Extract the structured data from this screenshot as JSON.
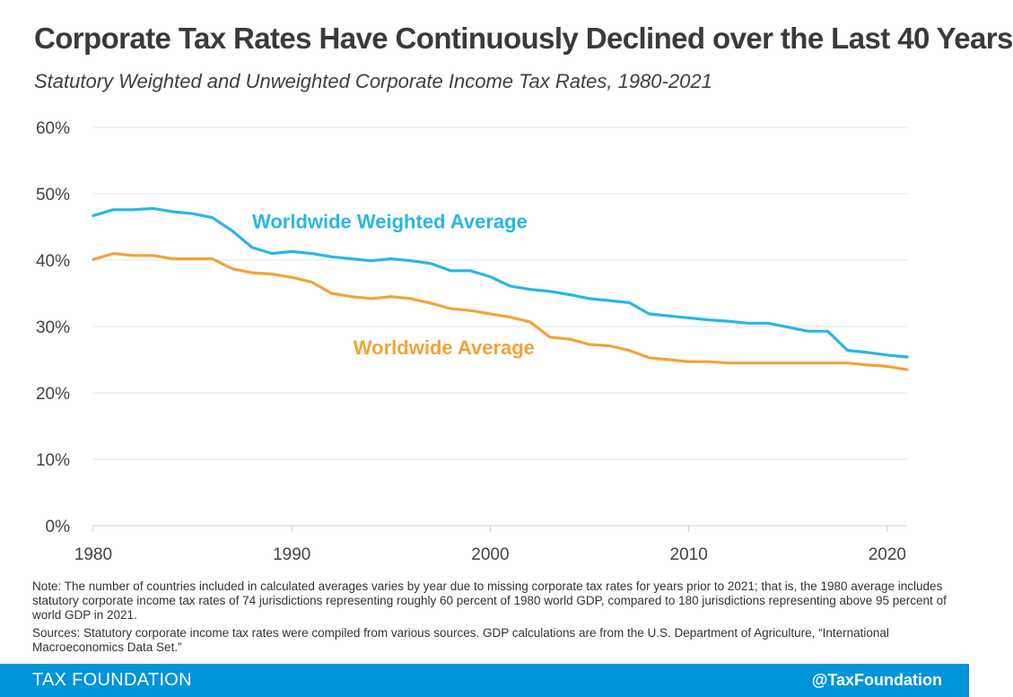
{
  "header": {
    "title": "Corporate Tax Rates Have Continuously Declined over the Last 40 Years",
    "subtitle": "Statutory Weighted and Unweighted Corporate Income Tax Rates, 1980-2021"
  },
  "chart_data": {
    "type": "line",
    "xlabel": "",
    "ylabel": "",
    "xlim": [
      1980,
      2021
    ],
    "ylim": [
      0,
      60
    ],
    "x_ticks": [
      1980,
      1990,
      2000,
      2010,
      2020
    ],
    "y_ticks": [
      "0%",
      "10%",
      "20%",
      "30%",
      "40%",
      "50%",
      "60%"
    ],
    "y_tick_values": [
      0,
      10,
      20,
      30,
      40,
      50,
      60
    ],
    "grid": true,
    "x": [
      1980,
      1981,
      1982,
      1983,
      1984,
      1985,
      1986,
      1987,
      1988,
      1989,
      1990,
      1991,
      1992,
      1993,
      1994,
      1995,
      1996,
      1997,
      1998,
      1999,
      2000,
      2001,
      2002,
      2003,
      2004,
      2005,
      2006,
      2007,
      2008,
      2009,
      2010,
      2011,
      2012,
      2013,
      2014,
      2015,
      2016,
      2017,
      2018,
      2019,
      2020,
      2021
    ],
    "series": [
      {
        "name": "Worldwide Weighted Average",
        "color": "#29b6e6",
        "values": [
          46.7,
          47.6,
          47.6,
          47.8,
          47.3,
          47.0,
          46.4,
          44.4,
          41.9,
          41.0,
          41.3,
          41.0,
          40.5,
          40.2,
          39.9,
          40.2,
          39.9,
          39.5,
          38.4,
          38.4,
          37.5,
          36.1,
          35.6,
          35.3,
          34.8,
          34.2,
          33.9,
          33.6,
          31.9,
          31.6,
          31.3,
          31.0,
          30.8,
          30.5,
          30.5,
          29.9,
          29.3,
          29.3,
          26.4,
          26.1,
          25.7,
          25.4
        ]
      },
      {
        "name": "Worldwide Average",
        "color": "#f2a33a",
        "values": [
          40.1,
          41.0,
          40.7,
          40.7,
          40.2,
          40.2,
          40.2,
          38.7,
          38.1,
          37.9,
          37.4,
          36.7,
          35.0,
          34.5,
          34.2,
          34.5,
          34.2,
          33.5,
          32.7,
          32.4,
          31.9,
          31.4,
          30.7,
          28.4,
          28.1,
          27.3,
          27.1,
          26.4,
          25.3,
          25.0,
          24.7,
          24.7,
          24.5,
          24.5,
          24.5,
          24.5,
          24.5,
          24.5,
          24.5,
          24.2,
          24.0,
          23.5
        ]
      }
    ]
  },
  "notes": {
    "note": "Note: The number of countries included in calculated averages varies by year due to missing corporate tax rates for years prior to 2021; that is, the 1980 average includes statutory corporate income tax rates of 74 jurisdictions representing roughly 60 percent of 1980 world GDP, compared to 180 jurisdictions representing above 95 percent of world GDP in 2021.",
    "sources": "Sources: Statutory corporate income tax rates were compiled from various sources. GDP calculations are from the U.S. Department of Agriculture, “International Macroeconomics Data Set.”"
  },
  "footer": {
    "brand": "TAX FOUNDATION",
    "handle": "@TaxFoundation"
  }
}
